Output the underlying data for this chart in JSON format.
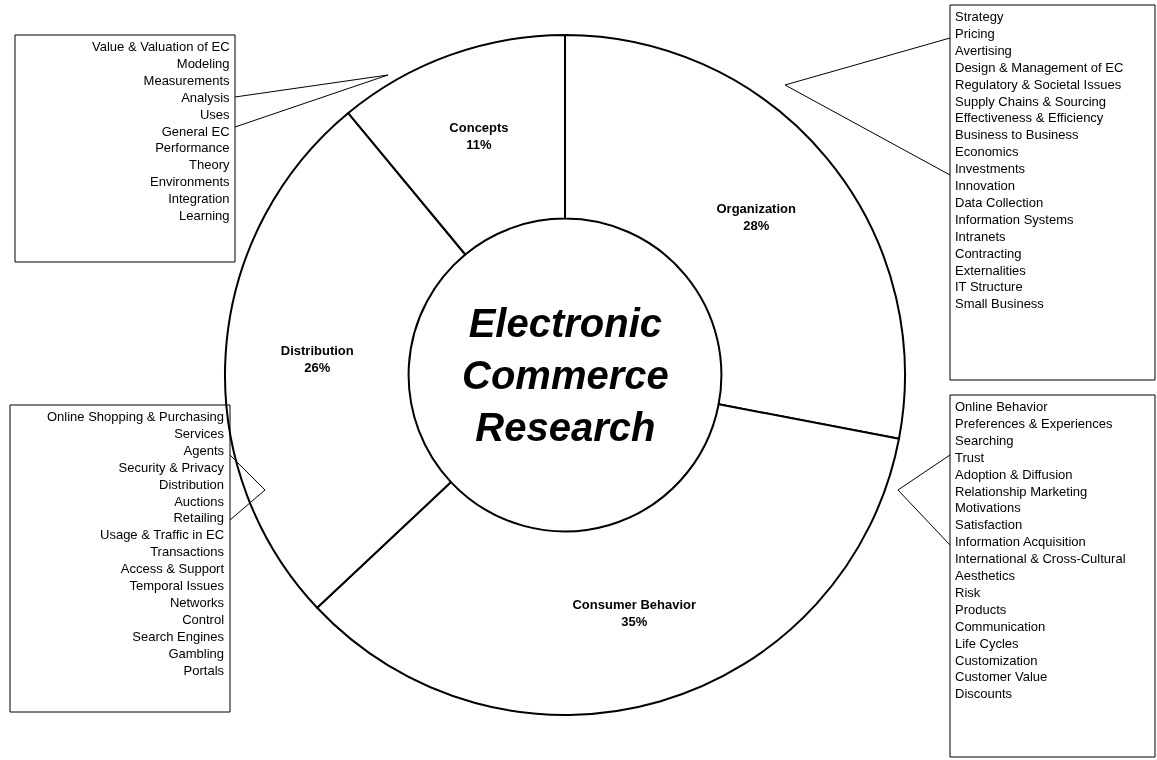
{
  "chart_data": {
    "type": "donut",
    "title": "Electronic Commerce Research",
    "categories": [
      "Organization",
      "Consumer Behavior",
      "Distribution",
      "Concepts"
    ],
    "values": [
      28,
      35,
      26,
      11
    ],
    "value_labels": [
      "28%",
      "35%",
      "26%",
      "11%"
    ],
    "colors": [
      "#ffffff",
      "#ffffff",
      "#ffffff",
      "#ffffff"
    ],
    "legend": false,
    "annotations": [
      "Value & Valuation of EC\nModeling\nMeasurements\nAnalysis\nUses\nGeneral EC\nPerformance\nTheory\nEnvironments\nIntegration\nLearning",
      "Strategy\nPricing\nAvertising\nDesign & Management of EC\nRegulatory & Societal Issues\nSupply Chains & Sourcing\nEffectiveness & Efficiency\nBusiness to Business\nEconomics\nInvestments\nInnovation\nData Collection\nInformation Systems\nIntranets\nContracting\nExternalities\nIT Structure\nSmall Business",
      "Online Shopping & Purchasing\nServices\nAgents\nSecurity & Privacy\nDistribution\nAuctions\nRetailing\nUsage & Traffic in EC\nTransactions\nAccess & Support\nTemporal Issues\nNetworks\nControl\nSearch Engines\nGambling\nPortals",
      "Online Behavior\nPreferences & Experiences\nSearching\nTrust\nAdoption & Diffusion\nRelationship Marketing\nMotivations\nSatisfaction\nInformation Acquisition\nInternational & Cross-Cultural\nAesthetics\nRisk\nProducts\nCommunication\nLife Cycles\nCustomization\nCustomer Value\nDiscounts"
    ]
  }
}
